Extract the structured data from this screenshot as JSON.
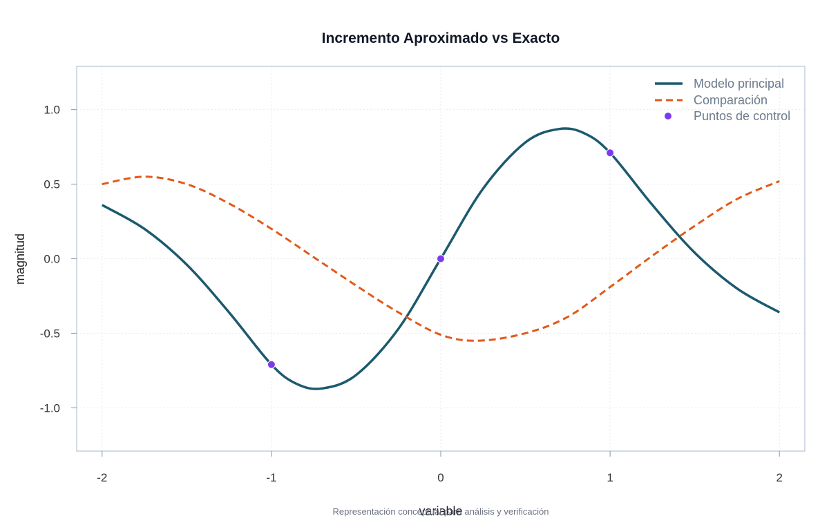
{
  "chart_data": {
    "type": "line",
    "title": "Incremento Aproximado vs Exacto",
    "xlabel": "variable",
    "ylabel": "magnitud",
    "caption": "Representación conceptual para análisis y verificación",
    "xlim": [
      -2.15,
      2.15
    ],
    "ylim": [
      -1.29,
      1.29
    ],
    "xticks": [
      -2,
      -1,
      0,
      1,
      2
    ],
    "xtick_labels": [
      "-2",
      "-1",
      "0",
      "1",
      "2"
    ],
    "yticks": [
      1.0,
      0.5,
      0.0,
      -0.5,
      -1.0
    ],
    "ytick_labels": [
      "1.0",
      "0.5",
      "0.0",
      "-0.5",
      "-1.0"
    ],
    "grid": true,
    "legend_position": "top-right",
    "series": [
      {
        "name": "Modelo principal",
        "style": "solid",
        "color": "#1b5a6e",
        "x": [
          -2.0,
          -1.75,
          -1.5,
          -1.25,
          -1.0,
          -0.85,
          -0.7,
          -0.5,
          -0.25,
          0.0,
          0.25,
          0.5,
          0.7,
          0.85,
          1.0,
          1.25,
          1.5,
          1.75,
          2.0
        ],
        "y": [
          0.36,
          0.2,
          -0.04,
          -0.36,
          -0.71,
          -0.84,
          -0.87,
          -0.78,
          -0.47,
          0.0,
          0.47,
          0.78,
          0.87,
          0.84,
          0.71,
          0.36,
          0.04,
          -0.2,
          -0.36
        ]
      },
      {
        "name": "Comparación",
        "style": "dashed",
        "color": "#e05a1a",
        "x": [
          -2.0,
          -1.75,
          -1.5,
          -1.25,
          -1.0,
          -0.75,
          -0.5,
          -0.25,
          0.0,
          0.22,
          0.5,
          0.75,
          1.0,
          1.25,
          1.5,
          1.75,
          2.0
        ],
        "y": [
          0.5,
          0.55,
          0.5,
          0.37,
          0.2,
          0.01,
          -0.18,
          -0.36,
          -0.51,
          -0.55,
          -0.5,
          -0.39,
          -0.19,
          0.02,
          0.22,
          0.4,
          0.52
        ]
      }
    ],
    "points": {
      "name": "Puntos de control",
      "color": "#7c3aed",
      "x": [
        -1,
        0,
        1
      ],
      "y": [
        -0.71,
        0.0,
        0.71
      ]
    }
  }
}
